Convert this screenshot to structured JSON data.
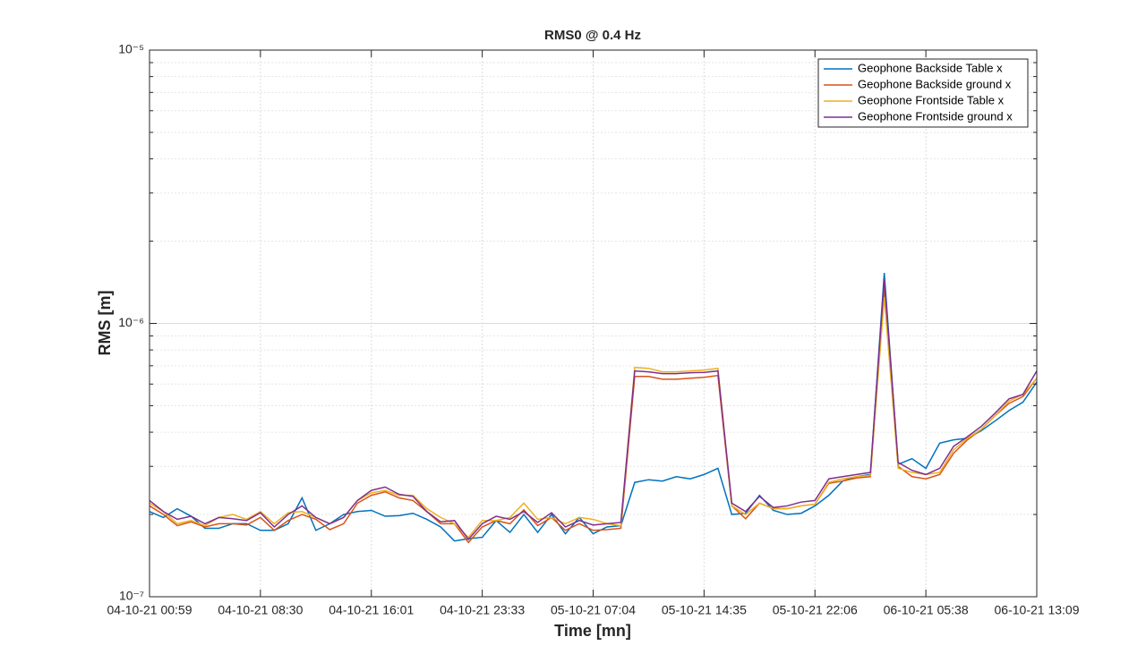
{
  "chart_data": {
    "type": "line",
    "title": "RMS0 @ 0.4 Hz",
    "x_label": "Time [mn]",
    "y_label": "RMS [m]",
    "categories": [
      "04-10-21 00:59",
      null,
      null,
      null,
      null,
      null,
      null,
      null,
      "04-10-21 08:30",
      null,
      null,
      null,
      null,
      null,
      null,
      null,
      "04-10-21 16:01",
      null,
      null,
      null,
      null,
      null,
      null,
      null,
      "04-10-21 23:33",
      null,
      null,
      null,
      null,
      null,
      null,
      null,
      "05-10-21 07:04",
      null,
      null,
      null,
      null,
      null,
      null,
      null,
      "05-10-21 14:35",
      null,
      null,
      null,
      null,
      null,
      null,
      null,
      "05-10-21 22:06",
      null,
      null,
      null,
      null,
      null,
      null,
      null,
      "06-10-21 05:38",
      null,
      null,
      null,
      null,
      null,
      null,
      null,
      "06-10-21 13:09"
    ],
    "series": [
      {
        "name": "Geophone Backside Table x",
        "color": "#0072BD",
        "values": [
          2.05e-07,
          1.95e-07,
          2.1e-07,
          1.97e-07,
          1.78e-07,
          1.78e-07,
          1.85e-07,
          1.85e-07,
          1.75e-07,
          1.75e-07,
          1.85e-07,
          2.3e-07,
          1.75e-07,
          1.85e-07,
          2e-07,
          2.05e-07,
          2.07e-07,
          1.97e-07,
          1.98e-07,
          2.02e-07,
          1.92e-07,
          1.8e-07,
          1.6e-07,
          1.63e-07,
          1.65e-07,
          1.9e-07,
          1.72e-07,
          2e-07,
          1.72e-07,
          2e-07,
          1.7e-07,
          1.95e-07,
          1.7e-07,
          1.8e-07,
          1.82e-07,
          2.62e-07,
          2.68e-07,
          2.65e-07,
          2.75e-07,
          2.7e-07,
          2.8e-07,
          2.95e-07,
          2e-07,
          2.02e-07,
          2.35e-07,
          2.07e-07,
          2e-07,
          2.02e-07,
          2.15e-07,
          2.35e-07,
          2.65e-07,
          2.75e-07,
          2.8e-07,
          1.53e-06,
          3.05e-07,
          3.2e-07,
          2.95e-07,
          3.65e-07,
          3.75e-07,
          3.8e-07,
          4.05e-07,
          4.4e-07,
          4.8e-07,
          5.15e-07,
          6.1e-07
        ]
      },
      {
        "name": "Geophone Backside ground x",
        "color": "#D95319",
        "values": [
          2.15e-07,
          2e-07,
          1.82e-07,
          1.88e-07,
          1.8e-07,
          1.85e-07,
          1.85e-07,
          1.83e-07,
          1.95e-07,
          1.75e-07,
          1.9e-07,
          2e-07,
          1.92e-07,
          1.76e-07,
          1.85e-07,
          2.2e-07,
          2.35e-07,
          2.42e-07,
          2.3e-07,
          2.25e-07,
          2.05e-07,
          1.85e-07,
          1.85e-07,
          1.58e-07,
          1.8e-07,
          1.9e-07,
          1.85e-07,
          2.08e-07,
          1.82e-07,
          1.95e-07,
          1.75e-07,
          1.85e-07,
          1.75e-07,
          1.76e-07,
          1.78e-07,
          6.4e-07,
          6.4e-07,
          6.25e-07,
          6.25e-07,
          6.3e-07,
          6.35e-07,
          6.45e-07,
          2.15e-07,
          1.93e-07,
          2.2e-07,
          2.1e-07,
          2.1e-07,
          2.15e-07,
          2.18e-07,
          2.6e-07,
          2.65e-07,
          2.72e-07,
          2.75e-07,
          1.35e-06,
          3e-07,
          2.75e-07,
          2.7e-07,
          2.8e-07,
          3.35e-07,
          3.75e-07,
          4.1e-07,
          4.6e-07,
          5.1e-07,
          5.4e-07,
          6.3e-07
        ]
      },
      {
        "name": "Geophone Frontside Table x",
        "color": "#EDB120",
        "values": [
          2.2e-07,
          2.05e-07,
          1.85e-07,
          1.9e-07,
          1.82e-07,
          1.95e-07,
          2e-07,
          1.92e-07,
          2.05e-07,
          1.85e-07,
          2.03e-07,
          2.05e-07,
          1.95e-07,
          1.85e-07,
          1.95e-07,
          2.25e-07,
          2.4e-07,
          2.45e-07,
          2.35e-07,
          2.35e-07,
          2.1e-07,
          1.95e-07,
          1.85e-07,
          1.65e-07,
          1.9e-07,
          1.9e-07,
          1.95e-07,
          2.2e-07,
          1.92e-07,
          1.95e-07,
          1.85e-07,
          1.95e-07,
          1.92e-07,
          1.85e-07,
          1.82e-07,
          6.9e-07,
          6.85e-07,
          6.65e-07,
          6.65e-07,
          6.7e-07,
          6.75e-07,
          6.85e-07,
          2.15e-07,
          2e-07,
          2.2e-07,
          2.1e-07,
          2.1e-07,
          2.15e-07,
          2.18e-07,
          2.62e-07,
          2.7e-07,
          2.75e-07,
          2.78e-07,
          1.25e-06,
          2.95e-07,
          2.85e-07,
          2.8e-07,
          2.85e-07,
          3.45e-07,
          3.8e-07,
          4.1e-07,
          4.6e-07,
          5.2e-07,
          5.5e-07,
          6.3e-07
        ]
      },
      {
        "name": "Geophone Frontside ground x",
        "color": "#7E2F8E",
        "values": [
          2.25e-07,
          2.05e-07,
          1.92e-07,
          1.97e-07,
          1.85e-07,
          1.95e-07,
          1.93e-07,
          1.9e-07,
          2.03e-07,
          1.8e-07,
          2e-07,
          2.15e-07,
          1.95e-07,
          1.85e-07,
          1.95e-07,
          2.25e-07,
          2.45e-07,
          2.52e-07,
          2.37e-07,
          2.33e-07,
          2.05e-07,
          1.88e-07,
          1.9e-07,
          1.62e-07,
          1.85e-07,
          1.97e-07,
          1.92e-07,
          2.05e-07,
          1.87e-07,
          2.03e-07,
          1.8e-07,
          1.9e-07,
          1.83e-07,
          1.85e-07,
          1.87e-07,
          6.7e-07,
          6.65e-07,
          6.55e-07,
          6.55e-07,
          6.6e-07,
          6.62e-07,
          6.7e-07,
          2.2e-07,
          2.05e-07,
          2.33e-07,
          2.12e-07,
          2.15e-07,
          2.22e-07,
          2.25e-07,
          2.7e-07,
          2.75e-07,
          2.8e-07,
          2.85e-07,
          1.45e-06,
          3.1e-07,
          2.9e-07,
          2.8e-07,
          2.95e-07,
          3.55e-07,
          3.85e-07,
          4.2e-07,
          4.7e-07,
          5.3e-07,
          5.5e-07,
          6.7e-07
        ]
      }
    ],
    "ylim": [
      1e-07,
      1e-05
    ],
    "yticks": [
      {
        "value": 1e-07,
        "label": "10⁻⁷"
      },
      {
        "value": 1e-06,
        "label": "10⁻⁶"
      },
      {
        "value": 1e-05,
        "label": "10⁻⁵"
      }
    ],
    "log_y": true,
    "grid": true,
    "minor_grid": true,
    "legend": "northeast"
  }
}
